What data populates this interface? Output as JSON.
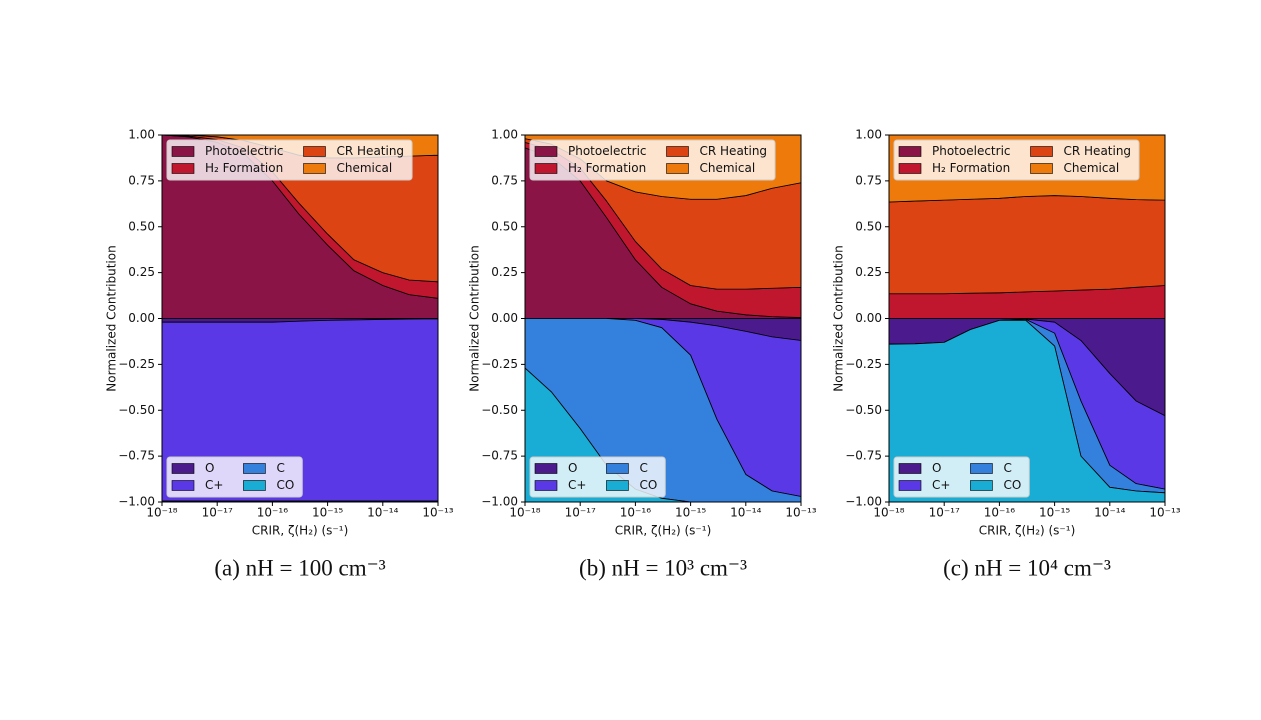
{
  "chart_data": [
    {
      "type": "stacked_area",
      "xscale": "log",
      "grid": false,
      "caption": "(a) nH = 100 cm⁻³",
      "xlabel": "CRIR, ζ(H₂) (s⁻¹)",
      "ylabel": "Normalized Contribution",
      "xlim": [
        1e-18,
        1e-13
      ],
      "ylim": [
        -1,
        1
      ],
      "xticks": [
        {
          "value": 1e-18,
          "label": "10⁻¹⁸"
        },
        {
          "value": 1e-17,
          "label": "10⁻¹⁷"
        },
        {
          "value": 1e-16,
          "label": "10⁻¹⁶"
        },
        {
          "value": 1e-15,
          "label": "10⁻¹⁵"
        },
        {
          "value": 1e-14,
          "label": "10⁻¹⁴"
        },
        {
          "value": 1e-13,
          "label": "10⁻¹³"
        }
      ],
      "yticks": [
        {
          "value": 1,
          "label": "1.00"
        },
        {
          "value": 0.75,
          "label": "0.75"
        },
        {
          "value": 0.5,
          "label": "0.50"
        },
        {
          "value": 0.25,
          "label": "0.25"
        },
        {
          "value": 0,
          "label": "0.00"
        },
        {
          "value": -0.25,
          "label": "−0.25"
        },
        {
          "value": -0.5,
          "label": "−0.50"
        },
        {
          "value": -0.75,
          "label": "−0.75"
        },
        {
          "value": -1,
          "label": "−1.00"
        }
      ],
      "x": [
        1e-18,
        3e-18,
        1e-17,
        3e-17,
        1e-16,
        3e-16,
        1e-15,
        3e-15,
        1e-14,
        3e-14,
        1e-13
      ],
      "series": [
        {
          "name": "Photoelectric",
          "color": "#8b1446",
          "legend": "upper left",
          "values": [
            1.0,
            0.99,
            0.96,
            0.9,
            0.75,
            0.57,
            0.4,
            0.26,
            0.18,
            0.13,
            0.11
          ]
        },
        {
          "name": "H₂ Formation",
          "color": "#c0162e",
          "legend": "upper left",
          "values": [
            0,
            0.005,
            0.015,
            0.03,
            0.05,
            0.06,
            0.06,
            0.06,
            0.07,
            0.08,
            0.09
          ]
        },
        {
          "name": "CR Heating",
          "color": "#dc4414",
          "legend": "upper left",
          "values": [
            0,
            0.005,
            0.015,
            0.04,
            0.13,
            0.26,
            0.415,
            0.555,
            0.63,
            0.675,
            0.69
          ]
        },
        {
          "name": "Chemical",
          "color": "#ee7a0c",
          "legend": "upper left",
          "values": [
            0,
            0,
            0.01,
            0.03,
            0.07,
            0.11,
            0.125,
            0.125,
            0.12,
            0.115,
            0.11
          ]
        },
        {
          "name": "O",
          "color": "#4b1a8c",
          "legend": "lower left",
          "values": [
            -0.02,
            -0.02,
            -0.02,
            -0.02,
            -0.02,
            -0.015,
            -0.01,
            -0.008,
            -0.005,
            -0.003,
            -0.002
          ]
        },
        {
          "name": "C+",
          "color": "#5a38e6",
          "legend": "lower left",
          "values": [
            -0.975,
            -0.975,
            -0.975,
            -0.975,
            -0.975,
            -0.98,
            -0.985,
            -0.987,
            -0.99,
            -0.992,
            -0.993
          ]
        },
        {
          "name": "C",
          "color": "#3380dd",
          "legend": "lower left",
          "values": [
            -0.005,
            -0.005,
            -0.005,
            -0.005,
            -0.005,
            -0.005,
            -0.005,
            -0.005,
            -0.005,
            -0.005,
            -0.005
          ]
        },
        {
          "name": "CO",
          "color": "#19acd4",
          "legend": "lower left",
          "values": [
            0,
            0,
            0,
            0,
            0,
            0,
            0,
            0,
            0,
            0,
            0
          ]
        }
      ]
    },
    {
      "type": "stacked_area",
      "xscale": "log",
      "grid": false,
      "caption": "(b) nH = 10³ cm⁻³",
      "xlabel": "CRIR, ζ(H₂) (s⁻¹)",
      "ylabel": "Normalized Contribution",
      "xlim": [
        1e-18,
        1e-13
      ],
      "ylim": [
        -1,
        1
      ],
      "xticks": [
        {
          "value": 1e-18,
          "label": "10⁻¹⁸"
        },
        {
          "value": 1e-17,
          "label": "10⁻¹⁷"
        },
        {
          "value": 1e-16,
          "label": "10⁻¹⁶"
        },
        {
          "value": 1e-15,
          "label": "10⁻¹⁵"
        },
        {
          "value": 1e-14,
          "label": "10⁻¹⁴"
        },
        {
          "value": 1e-13,
          "label": "10⁻¹³"
        }
      ],
      "yticks": [
        {
          "value": 1,
          "label": "1.00"
        },
        {
          "value": 0.75,
          "label": "0.75"
        },
        {
          "value": 0.5,
          "label": "0.50"
        },
        {
          "value": 0.25,
          "label": "0.25"
        },
        {
          "value": 0,
          "label": "0.00"
        },
        {
          "value": -0.25,
          "label": "−0.25"
        },
        {
          "value": -0.5,
          "label": "−0.50"
        },
        {
          "value": -0.75,
          "label": "−0.75"
        },
        {
          "value": -1,
          "label": "−1.00"
        }
      ],
      "x": [
        1e-18,
        3e-18,
        1e-17,
        3e-17,
        1e-16,
        3e-16,
        1e-15,
        3e-15,
        1e-14,
        3e-14,
        1e-13
      ],
      "series": [
        {
          "name": "Photoelectric",
          "color": "#8b1446",
          "legend": "upper left",
          "values": [
            0.93,
            0.88,
            0.75,
            0.55,
            0.32,
            0.17,
            0.08,
            0.04,
            0.02,
            0.01,
            0.005
          ]
        },
        {
          "name": "H₂ Formation",
          "color": "#c0162e",
          "legend": "upper left",
          "values": [
            0.03,
            0.04,
            0.07,
            0.09,
            0.1,
            0.1,
            0.1,
            0.12,
            0.14,
            0.155,
            0.165
          ]
        },
        {
          "name": "CR Heating",
          "color": "#dc4414",
          "legend": "upper left",
          "values": [
            0.02,
            0.03,
            0.05,
            0.11,
            0.27,
            0.395,
            0.47,
            0.49,
            0.51,
            0.545,
            0.57
          ]
        },
        {
          "name": "Chemical",
          "color": "#ee7a0c",
          "legend": "upper left",
          "values": [
            0.02,
            0.05,
            0.13,
            0.25,
            0.31,
            0.335,
            0.35,
            0.35,
            0.33,
            0.29,
            0.26
          ]
        },
        {
          "name": "O",
          "color": "#4b1a8c",
          "legend": "lower left",
          "values": [
            0,
            0,
            0,
            0,
            0,
            -0.005,
            -0.02,
            -0.04,
            -0.07,
            -0.1,
            -0.12
          ]
        },
        {
          "name": "C+",
          "color": "#5a38e6",
          "legend": "lower left",
          "values": [
            0,
            0,
            0,
            0,
            -0.01,
            -0.045,
            -0.18,
            -0.51,
            -0.78,
            -0.84,
            -0.85
          ]
        },
        {
          "name": "C",
          "color": "#3380dd",
          "legend": "lower left",
          "values": [
            -0.27,
            -0.4,
            -0.6,
            -0.8,
            -0.92,
            -0.93,
            -0.8,
            -0.45,
            -0.15,
            -0.06,
            -0.03
          ]
        },
        {
          "name": "CO",
          "color": "#19acd4",
          "legend": "lower left",
          "values": [
            -0.73,
            -0.6,
            -0.4,
            -0.2,
            -0.07,
            -0.02,
            0,
            0,
            0,
            0,
            0
          ]
        }
      ]
    },
    {
      "type": "stacked_area",
      "xscale": "log",
      "grid": false,
      "caption": "(c) nH = 10⁴ cm⁻³",
      "xlabel": "CRIR, ζ(H₂) (s⁻¹)",
      "ylabel": "Normalized Contribution",
      "xlim": [
        1e-18,
        1e-13
      ],
      "ylim": [
        -1,
        1
      ],
      "xticks": [
        {
          "value": 1e-18,
          "label": "10⁻¹⁸"
        },
        {
          "value": 1e-17,
          "label": "10⁻¹⁷"
        },
        {
          "value": 1e-16,
          "label": "10⁻¹⁶"
        },
        {
          "value": 1e-15,
          "label": "10⁻¹⁵"
        },
        {
          "value": 1e-14,
          "label": "10⁻¹⁴"
        },
        {
          "value": 1e-13,
          "label": "10⁻¹³"
        }
      ],
      "yticks": [
        {
          "value": 1,
          "label": "1.00"
        },
        {
          "value": 0.75,
          "label": "0.75"
        },
        {
          "value": 0.5,
          "label": "0.50"
        },
        {
          "value": 0.25,
          "label": "0.25"
        },
        {
          "value": 0,
          "label": "0.00"
        },
        {
          "value": -0.25,
          "label": "−0.25"
        },
        {
          "value": -0.5,
          "label": "−0.50"
        },
        {
          "value": -0.75,
          "label": "−0.75"
        },
        {
          "value": -1,
          "label": "−1.00"
        }
      ],
      "x": [
        1e-18,
        3e-18,
        1e-17,
        3e-17,
        1e-16,
        3e-16,
        1e-15,
        3e-15,
        1e-14,
        3e-14,
        1e-13
      ],
      "series": [
        {
          "name": "Photoelectric",
          "color": "#8b1446",
          "legend": "upper left",
          "values": [
            0,
            0,
            0,
            0,
            0,
            0,
            0,
            0,
            0,
            0,
            0
          ]
        },
        {
          "name": "H₂ Formation",
          "color": "#c0162e",
          "legend": "upper left",
          "values": [
            0.135,
            0.135,
            0.135,
            0.138,
            0.14,
            0.145,
            0.15,
            0.155,
            0.16,
            0.17,
            0.18
          ]
        },
        {
          "name": "CR Heating",
          "color": "#dc4414",
          "legend": "upper left",
          "values": [
            0.5,
            0.505,
            0.51,
            0.512,
            0.515,
            0.52,
            0.52,
            0.51,
            0.495,
            0.478,
            0.465
          ]
        },
        {
          "name": "Chemical",
          "color": "#ee7a0c",
          "legend": "upper left",
          "values": [
            0.365,
            0.36,
            0.355,
            0.35,
            0.345,
            0.335,
            0.33,
            0.335,
            0.345,
            0.352,
            0.355
          ]
        },
        {
          "name": "O",
          "color": "#4b1a8c",
          "legend": "lower left",
          "values": [
            -0.14,
            -0.138,
            -0.13,
            -0.06,
            -0.01,
            -0.003,
            -0.02,
            -0.12,
            -0.3,
            -0.45,
            -0.53
          ]
        },
        {
          "name": "C+",
          "color": "#5a38e6",
          "legend": "lower left",
          "values": [
            0,
            0,
            0,
            0,
            0,
            -0.002,
            -0.06,
            -0.33,
            -0.5,
            -0.45,
            -0.4
          ]
        },
        {
          "name": "C",
          "color": "#3380dd",
          "legend": "lower left",
          "values": [
            0,
            0,
            0,
            0,
            0,
            -0.005,
            -0.07,
            -0.3,
            -0.12,
            -0.04,
            -0.02
          ]
        },
        {
          "name": "CO",
          "color": "#19acd4",
          "legend": "lower left",
          "values": [
            -0.86,
            -0.862,
            -0.87,
            -0.94,
            -0.99,
            -0.99,
            -0.85,
            -0.25,
            -0.08,
            -0.06,
            -0.05
          ]
        }
      ]
    }
  ]
}
